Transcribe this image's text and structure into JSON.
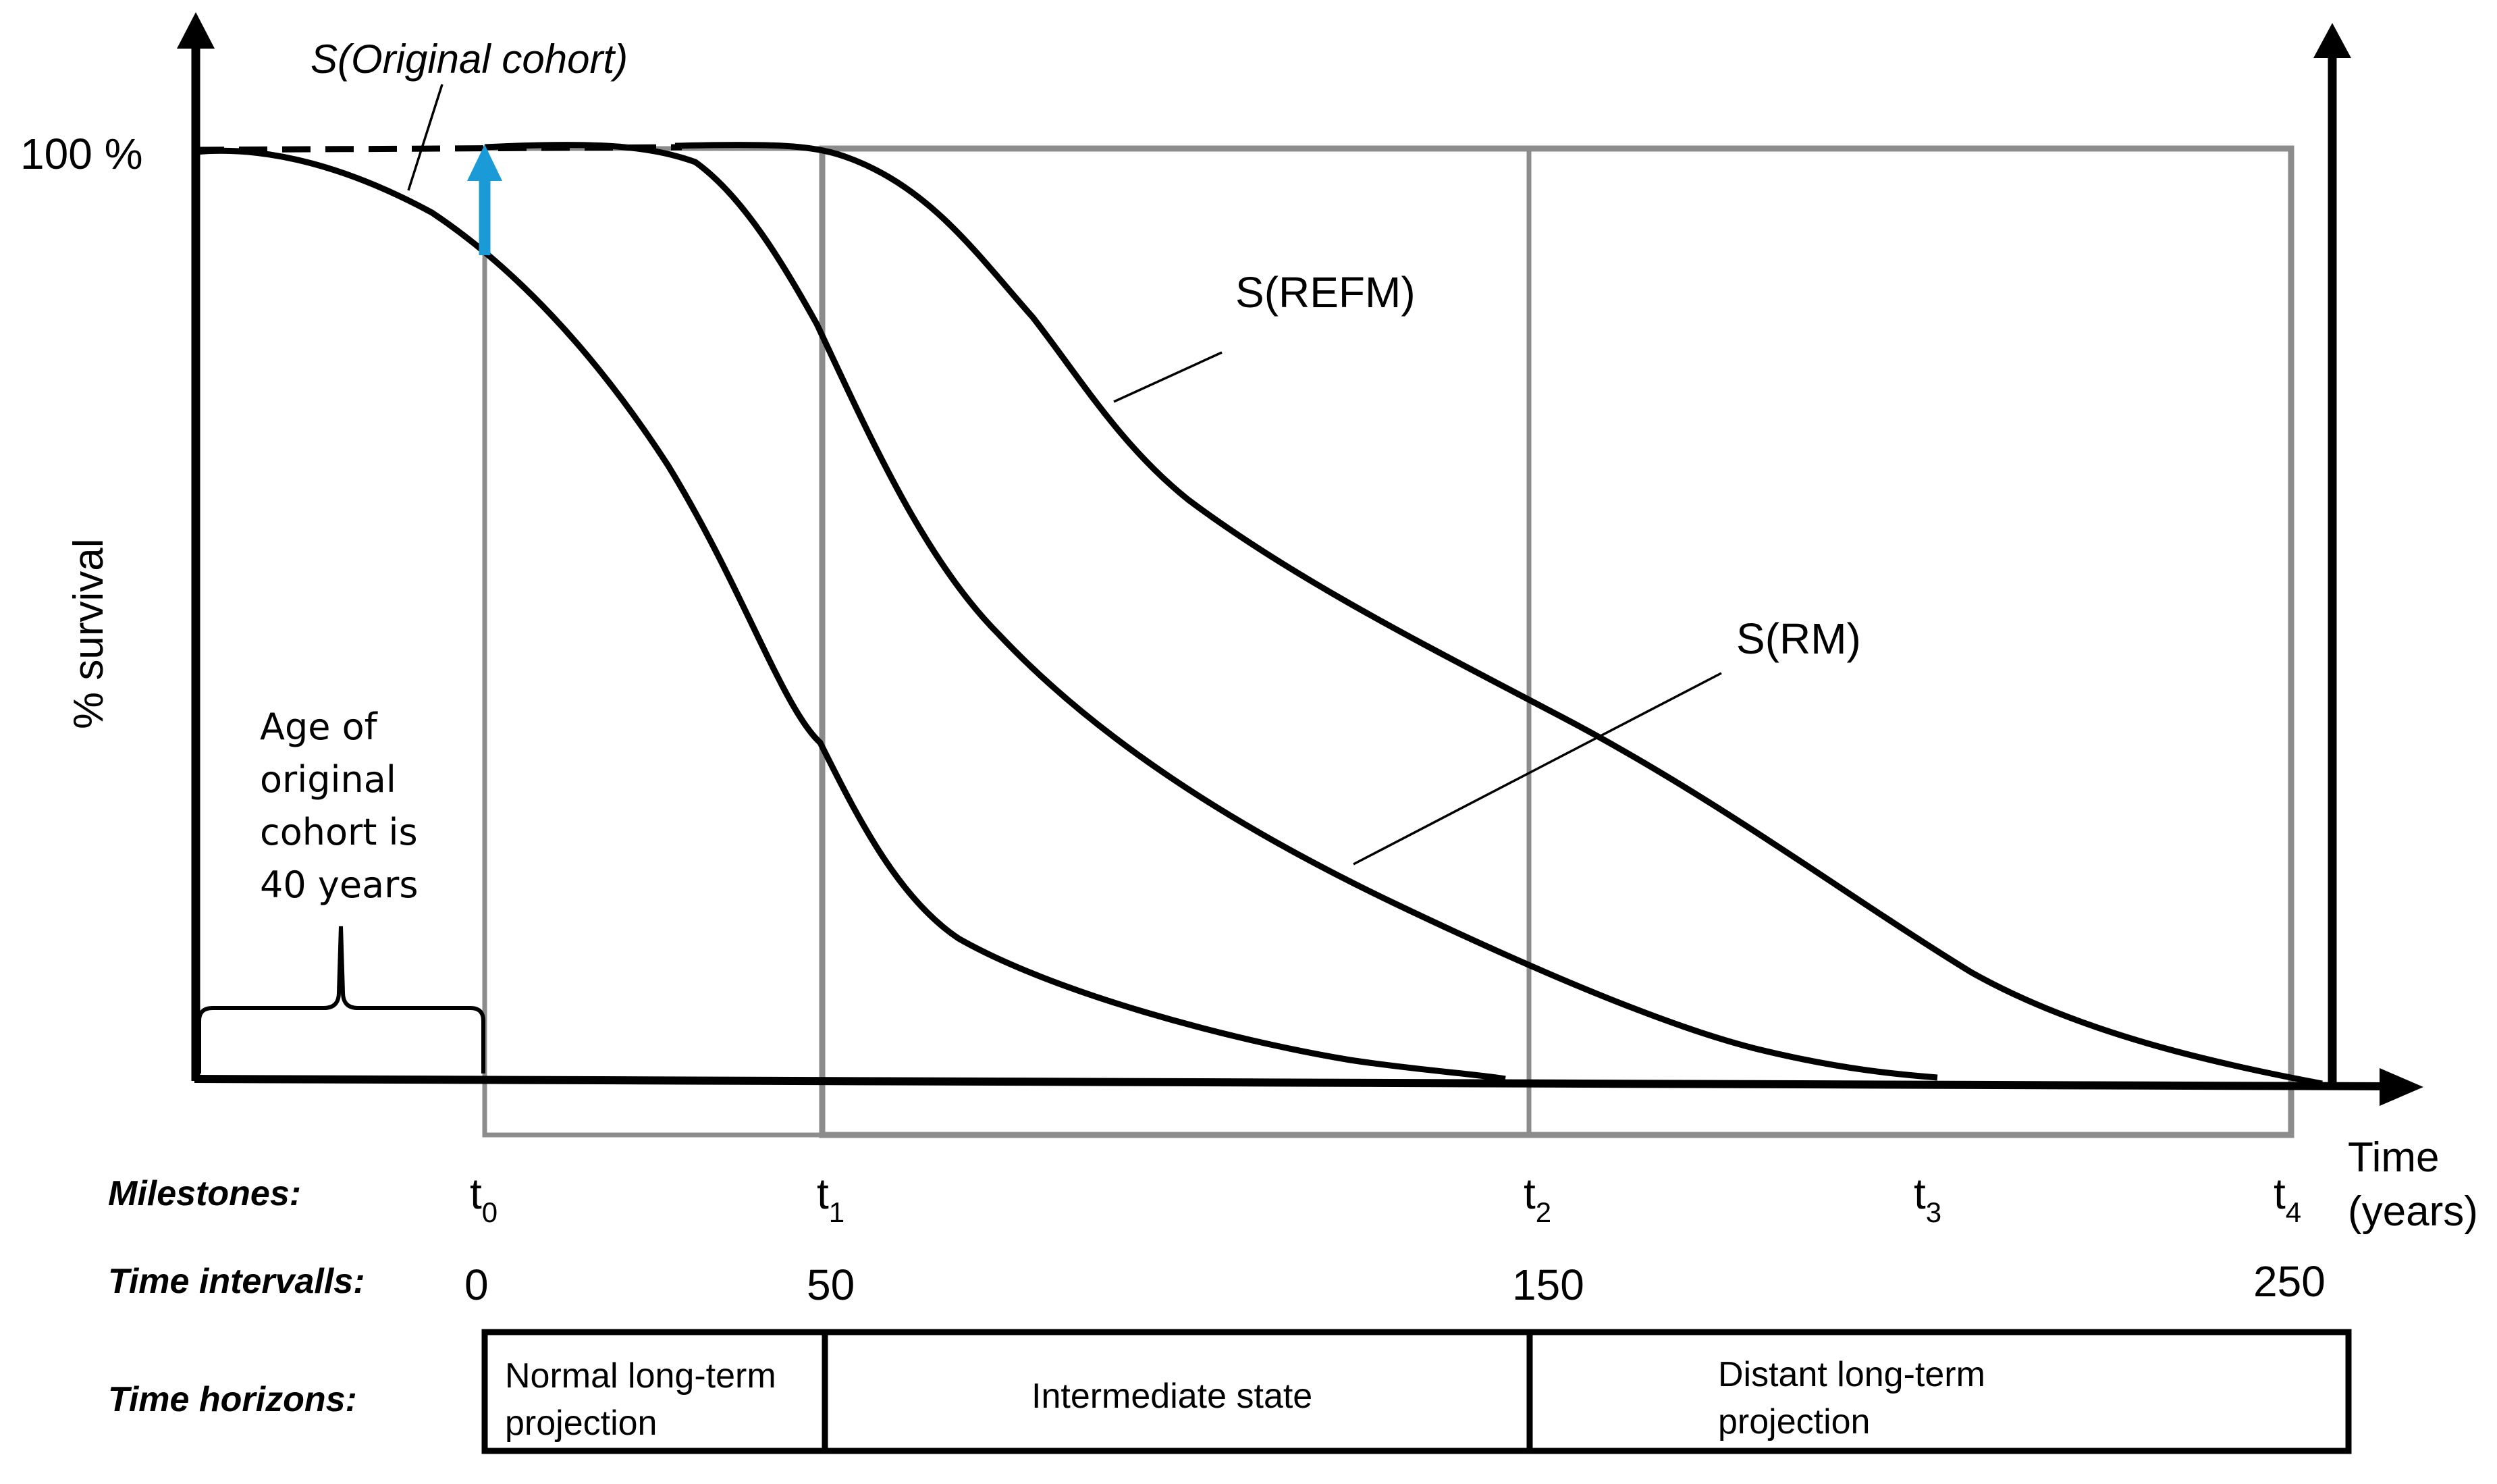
{
  "diagram": {
    "y_axis_label": "% survival",
    "y_tick_label": "100 %",
    "x_axis_title_line1": "Time",
    "x_axis_title_line2": "(years)",
    "curve_labels": {
      "original": "S(Original cohort)",
      "refm": "S(REFM)",
      "rm": "S(RM)"
    },
    "cohort_note": [
      "Age of",
      "original",
      "cohort is",
      "40 years"
    ],
    "rows": {
      "milestones": "Milestones:",
      "intervals": "Time intervalls:",
      "horizons": "Time horizons:"
    },
    "milestones": [
      {
        "base": "t",
        "sub": "0"
      },
      {
        "base": "t",
        "sub": "1"
      },
      {
        "base": "t",
        "sub": "2"
      },
      {
        "base": "t",
        "sub": "3"
      },
      {
        "base": "t",
        "sub": "4"
      }
    ],
    "intervals": [
      "0",
      "50",
      "150",
      "250"
    ],
    "horizons": [
      [
        "Normal long-term",
        "projection"
      ],
      [
        "Intermediate state"
      ],
      [
        "Distant long-term",
        "projection"
      ]
    ],
    "colors": {
      "arrow_blue": "#1a9ad6",
      "box_gray": "#8c8c8c",
      "line_black": "#000000"
    }
  }
}
